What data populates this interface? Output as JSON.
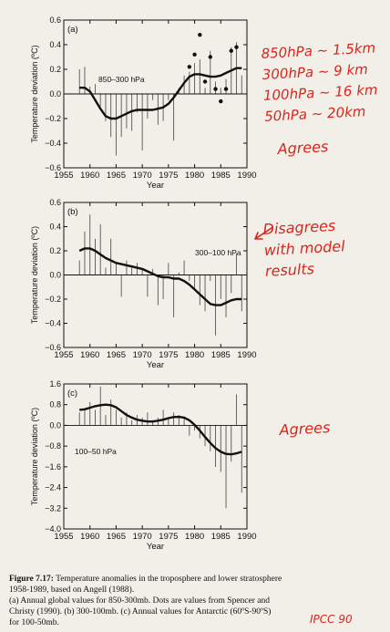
{
  "chart_data": [
    {
      "type": "bar",
      "panel_label": "(a)",
      "series_label": "850–300 hPa",
      "xlabel": "Year",
      "ylabel": "Temperature deviation (ºC)",
      "xlim": [
        1955,
        1990
      ],
      "ylim": [
        -0.6,
        0.6
      ],
      "xticks": [
        "1955",
        "1960",
        "1965",
        "1970",
        "1975",
        "1980",
        "1985",
        "1990"
      ],
      "yticks": [
        "0.6",
        "0.4",
        "0.2",
        "0.0",
        "−0.2",
        "−0.4",
        "−0.6"
      ],
      "bars": [
        {
          "x": 1958,
          "y": 0.2
        },
        {
          "x": 1959,
          "y": 0.22
        },
        {
          "x": 1960,
          "y": 0.06
        },
        {
          "x": 1961,
          "y": 0.08
        },
        {
          "x": 1962,
          "y": -0.1
        },
        {
          "x": 1963,
          "y": -0.22
        },
        {
          "x": 1964,
          "y": -0.35
        },
        {
          "x": 1965,
          "y": -0.5
        },
        {
          "x": 1966,
          "y": -0.35
        },
        {
          "x": 1967,
          "y": -0.28
        },
        {
          "x": 1968,
          "y": -0.3
        },
        {
          "x": 1969,
          "y": -0.15
        },
        {
          "x": 1970,
          "y": -0.46
        },
        {
          "x": 1971,
          "y": -0.2
        },
        {
          "x": 1972,
          "y": -0.05
        },
        {
          "x": 1973,
          "y": -0.25
        },
        {
          "x": 1974,
          "y": -0.22
        },
        {
          "x": 1975,
          "y": -0.05
        },
        {
          "x": 1976,
          "y": -0.38
        },
        {
          "x": 1977,
          "y": 0.05
        },
        {
          "x": 1978,
          "y": 0.15
        },
        {
          "x": 1979,
          "y": 0.18
        },
        {
          "x": 1980,
          "y": 0.25
        },
        {
          "x": 1981,
          "y": 0.28
        },
        {
          "x": 1982,
          "y": 0.05
        },
        {
          "x": 1983,
          "y": 0.35
        },
        {
          "x": 1984,
          "y": 0.1
        },
        {
          "x": 1985,
          "y": 0.05
        },
        {
          "x": 1986,
          "y": 0.12
        },
        {
          "x": 1987,
          "y": 0.38
        },
        {
          "x": 1988,
          "y": 0.42
        },
        {
          "x": 1989,
          "y": 0.15
        }
      ],
      "dots": [
        {
          "x": 1979,
          "y": 0.22
        },
        {
          "x": 1980,
          "y": 0.32
        },
        {
          "x": 1981,
          "y": 0.48
        },
        {
          "x": 1982,
          "y": 0.1
        },
        {
          "x": 1983,
          "y": 0.3
        },
        {
          "x": 1984,
          "y": 0.04
        },
        {
          "x": 1985,
          "y": -0.06
        },
        {
          "x": 1986,
          "y": 0.04
        },
        {
          "x": 1987,
          "y": 0.35
        },
        {
          "x": 1988,
          "y": 0.38
        }
      ],
      "smooth": [
        {
          "x": 1958,
          "y": 0.05
        },
        {
          "x": 1959,
          "y": 0.05
        },
        {
          "x": 1960,
          "y": 0.02
        },
        {
          "x": 1961,
          "y": -0.05
        },
        {
          "x": 1962,
          "y": -0.12
        },
        {
          "x": 1963,
          "y": -0.18
        },
        {
          "x": 1964,
          "y": -0.2
        },
        {
          "x": 1965,
          "y": -0.2
        },
        {
          "x": 1966,
          "y": -0.18
        },
        {
          "x": 1967,
          "y": -0.16
        },
        {
          "x": 1968,
          "y": -0.14
        },
        {
          "x": 1969,
          "y": -0.13
        },
        {
          "x": 1970,
          "y": -0.13
        },
        {
          "x": 1971,
          "y": -0.13
        },
        {
          "x": 1972,
          "y": -0.13
        },
        {
          "x": 1973,
          "y": -0.12
        },
        {
          "x": 1974,
          "y": -0.11
        },
        {
          "x": 1975,
          "y": -0.08
        },
        {
          "x": 1976,
          "y": -0.03
        },
        {
          "x": 1977,
          "y": 0.03
        },
        {
          "x": 1978,
          "y": 0.09
        },
        {
          "x": 1979,
          "y": 0.14
        },
        {
          "x": 1980,
          "y": 0.16
        },
        {
          "x": 1981,
          "y": 0.16
        },
        {
          "x": 1982,
          "y": 0.15
        },
        {
          "x": 1983,
          "y": 0.14
        },
        {
          "x": 1984,
          "y": 0.14
        },
        {
          "x": 1985,
          "y": 0.15
        },
        {
          "x": 1986,
          "y": 0.17
        },
        {
          "x": 1987,
          "y": 0.19
        },
        {
          "x": 1988,
          "y": 0.21
        },
        {
          "x": 1989,
          "y": 0.21
        }
      ]
    },
    {
      "type": "bar",
      "panel_label": "(b)",
      "series_label": "300–100 hPa",
      "xlabel": "Year",
      "ylabel": "Temperature deviation (ºC)",
      "xlim": [
        1955,
        1990
      ],
      "ylim": [
        -0.6,
        0.6
      ],
      "xticks": [
        "1955",
        "1960",
        "1965",
        "1970",
        "1975",
        "1980",
        "1985",
        "1990"
      ],
      "yticks": [
        "0.6",
        "0.4",
        "0.2",
        "0.0",
        "−0.2",
        "−0.4",
        "−0.6"
      ],
      "bars": [
        {
          "x": 1958,
          "y": 0.12
        },
        {
          "x": 1959,
          "y": 0.36
        },
        {
          "x": 1960,
          "y": 0.5
        },
        {
          "x": 1961,
          "y": 0.3
        },
        {
          "x": 1962,
          "y": 0.42
        },
        {
          "x": 1963,
          "y": 0.06
        },
        {
          "x": 1964,
          "y": 0.3
        },
        {
          "x": 1965,
          "y": 0.1
        },
        {
          "x": 1966,
          "y": -0.18
        },
        {
          "x": 1967,
          "y": 0.12
        },
        {
          "x": 1968,
          "y": 0.08
        },
        {
          "x": 1969,
          "y": 0.1
        },
        {
          "x": 1970,
          "y": 0.04
        },
        {
          "x": 1971,
          "y": -0.18
        },
        {
          "x": 1972,
          "y": 0.05
        },
        {
          "x": 1973,
          "y": -0.25
        },
        {
          "x": 1974,
          "y": -0.2
        },
        {
          "x": 1975,
          "y": 0.1
        },
        {
          "x": 1976,
          "y": -0.35
        },
        {
          "x": 1977,
          "y": 0.02
        },
        {
          "x": 1978,
          "y": 0.12
        },
        {
          "x": 1979,
          "y": -0.05
        },
        {
          "x": 1980,
          "y": -0.12
        },
        {
          "x": 1981,
          "y": -0.25
        },
        {
          "x": 1982,
          "y": -0.3
        },
        {
          "x": 1983,
          "y": -0.05
        },
        {
          "x": 1984,
          "y": -0.5
        },
        {
          "x": 1985,
          "y": -0.2
        },
        {
          "x": 1986,
          "y": -0.35
        },
        {
          "x": 1987,
          "y": -0.15
        },
        {
          "x": 1988,
          "y": 0.18
        },
        {
          "x": 1989,
          "y": -0.3
        }
      ],
      "smooth": [
        {
          "x": 1958,
          "y": 0.2
        },
        {
          "x": 1959,
          "y": 0.22
        },
        {
          "x": 1960,
          "y": 0.22
        },
        {
          "x": 1961,
          "y": 0.2
        },
        {
          "x": 1962,
          "y": 0.17
        },
        {
          "x": 1963,
          "y": 0.14
        },
        {
          "x": 1964,
          "y": 0.12
        },
        {
          "x": 1965,
          "y": 0.1
        },
        {
          "x": 1966,
          "y": 0.09
        },
        {
          "x": 1967,
          "y": 0.08
        },
        {
          "x": 1968,
          "y": 0.07
        },
        {
          "x": 1969,
          "y": 0.06
        },
        {
          "x": 1970,
          "y": 0.05
        },
        {
          "x": 1971,
          "y": 0.03
        },
        {
          "x": 1972,
          "y": 0.01
        },
        {
          "x": 1973,
          "y": -0.01
        },
        {
          "x": 1974,
          "y": -0.02
        },
        {
          "x": 1975,
          "y": -0.02
        },
        {
          "x": 1976,
          "y": -0.03
        },
        {
          "x": 1977,
          "y": -0.03
        },
        {
          "x": 1978,
          "y": -0.05
        },
        {
          "x": 1979,
          "y": -0.08
        },
        {
          "x": 1980,
          "y": -0.12
        },
        {
          "x": 1981,
          "y": -0.16
        },
        {
          "x": 1982,
          "y": -0.2
        },
        {
          "x": 1983,
          "y": -0.24
        },
        {
          "x": 1984,
          "y": -0.25
        },
        {
          "x": 1985,
          "y": -0.25
        },
        {
          "x": 1986,
          "y": -0.23
        },
        {
          "x": 1987,
          "y": -0.21
        },
        {
          "x": 1988,
          "y": -0.2
        },
        {
          "x": 1989,
          "y": -0.2
        }
      ]
    },
    {
      "type": "bar",
      "panel_label": "(c)",
      "series_label": "100–50 hPa",
      "xlabel": "Year",
      "ylabel": "Temperature deviation (ºC)",
      "xlim": [
        1955,
        1990
      ],
      "ylim": [
        -4.0,
        1.6
      ],
      "xticks": [
        "1955",
        "1960",
        "1965",
        "1970",
        "1975",
        "1980",
        "1985",
        "1990"
      ],
      "yticks": [
        "1.6",
        "0.8",
        "0.0",
        "−0.8",
        "−1.6",
        "−2.4",
        "−3.2",
        "−4.0"
      ],
      "bars": [
        {
          "x": 1958,
          "y": 0.5
        },
        {
          "x": 1959,
          "y": 0.6
        },
        {
          "x": 1960,
          "y": 0.9
        },
        {
          "x": 1961,
          "y": 0.6
        },
        {
          "x": 1962,
          "y": 1.5
        },
        {
          "x": 1963,
          "y": 0.4
        },
        {
          "x": 1964,
          "y": 1.0
        },
        {
          "x": 1965,
          "y": 0.6
        },
        {
          "x": 1966,
          "y": 0.3
        },
        {
          "x": 1967,
          "y": 0.5
        },
        {
          "x": 1968,
          "y": 0.2
        },
        {
          "x": 1969,
          "y": 0.4
        },
        {
          "x": 1970,
          "y": 0.3
        },
        {
          "x": 1971,
          "y": 0.5
        },
        {
          "x": 1972,
          "y": 0.2
        },
        {
          "x": 1973,
          "y": 0.3
        },
        {
          "x": 1974,
          "y": 0.6
        },
        {
          "x": 1975,
          "y": 0.3
        },
        {
          "x": 1976,
          "y": 0.5
        },
        {
          "x": 1977,
          "y": 0.4
        },
        {
          "x": 1978,
          "y": 0.3
        },
        {
          "x": 1979,
          "y": -0.4
        },
        {
          "x": 1980,
          "y": -0.2
        },
        {
          "x": 1981,
          "y": -0.5
        },
        {
          "x": 1982,
          "y": -0.8
        },
        {
          "x": 1983,
          "y": -1.0
        },
        {
          "x": 1984,
          "y": -1.6
        },
        {
          "x": 1985,
          "y": -1.8
        },
        {
          "x": 1986,
          "y": -3.2
        },
        {
          "x": 1987,
          "y": -1.4
        },
        {
          "x": 1988,
          "y": 1.2
        },
        {
          "x": 1989,
          "y": -2.6
        }
      ],
      "smooth": [
        {
          "x": 1958,
          "y": 0.6
        },
        {
          "x": 1959,
          "y": 0.62
        },
        {
          "x": 1960,
          "y": 0.68
        },
        {
          "x": 1961,
          "y": 0.74
        },
        {
          "x": 1962,
          "y": 0.78
        },
        {
          "x": 1963,
          "y": 0.8
        },
        {
          "x": 1964,
          "y": 0.78
        },
        {
          "x": 1965,
          "y": 0.7
        },
        {
          "x": 1966,
          "y": 0.55
        },
        {
          "x": 1967,
          "y": 0.4
        },
        {
          "x": 1968,
          "y": 0.3
        },
        {
          "x": 1969,
          "y": 0.22
        },
        {
          "x": 1970,
          "y": 0.18
        },
        {
          "x": 1971,
          "y": 0.15
        },
        {
          "x": 1972,
          "y": 0.15
        },
        {
          "x": 1973,
          "y": 0.18
        },
        {
          "x": 1974,
          "y": 0.22
        },
        {
          "x": 1975,
          "y": 0.28
        },
        {
          "x": 1976,
          "y": 0.32
        },
        {
          "x": 1977,
          "y": 0.33
        },
        {
          "x": 1978,
          "y": 0.3
        },
        {
          "x": 1979,
          "y": 0.2
        },
        {
          "x": 1980,
          "y": 0.02
        },
        {
          "x": 1981,
          "y": -0.2
        },
        {
          "x": 1982,
          "y": -0.45
        },
        {
          "x": 1983,
          "y": -0.68
        },
        {
          "x": 1984,
          "y": -0.88
        },
        {
          "x": 1985,
          "y": -1.02
        },
        {
          "x": 1986,
          "y": -1.1
        },
        {
          "x": 1987,
          "y": -1.12
        },
        {
          "x": 1988,
          "y": -1.08
        },
        {
          "x": 1989,
          "y": -1.02
        }
      ]
    }
  ],
  "annotations": {
    "pressure_heights": "850hPa ~ 1.5km\n300hPa ~ 9 km\n100hPa ~ 16 km\n50hPa ~ 20km",
    "panel_a_note": "Agrees",
    "panel_b_note": "Disagrees\nwith model\nresults",
    "panel_c_note": "Agrees",
    "source_tag": "IPCC 90",
    "colors": {
      "ink": "#111111",
      "pen": "#d9261c",
      "paper": "#f1efe8"
    }
  },
  "caption": {
    "head": "Figure 7.17:",
    "text": " Temperature anomalies in the troposphere and lower stratosphere 1958-1989, based on Angell (1988).",
    "line_a": "(a) Annual global values for 850-300mb. Dots are values from Spencer and Christy (1990). (b) 300-100mb. (c) Annual values for Antarctic (60ºS-90ºS) for 100-50mb."
  }
}
